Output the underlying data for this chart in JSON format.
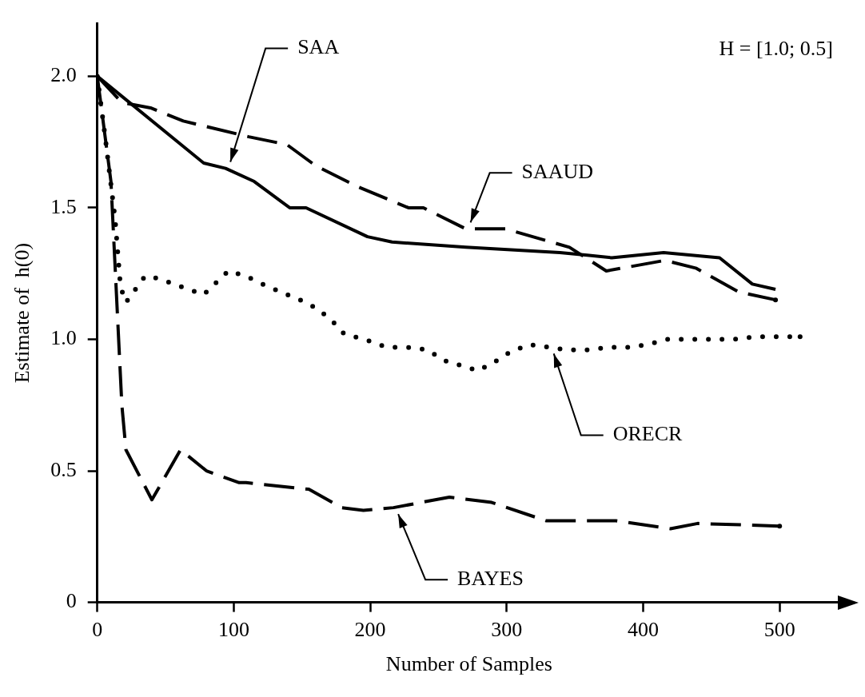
{
  "chart_data": {
    "type": "line",
    "xlabel": "Number of Samples",
    "ylabel": "Estimate of  h(0)",
    "annotations": [
      "H = [1.0; 0.5]"
    ],
    "xlim": [
      0,
      545
    ],
    "xticks": [
      0,
      100,
      200,
      300,
      400,
      500
    ],
    "ylim": [
      0,
      2.2
    ],
    "yticks": [
      0,
      {
        "value": 0.5,
        "label": "0.5"
      },
      {
        "value": 1,
        "label": "1.0"
      },
      {
        "value": 1.5,
        "label": "1.5"
      },
      {
        "value": 2,
        "label": "2.0"
      }
    ],
    "grid": false,
    "legend": false,
    "marker": "none",
    "series": [
      {
        "name": "SAA",
        "color": "#000000",
        "line_style": "solid",
        "x": [
          0,
          78,
          94,
          115,
          141,
          153,
          198,
          216,
          270,
          339,
          359,
          377,
          415,
          456,
          480,
          497
        ],
        "values": [
          2.0,
          1.67,
          1.65,
          1.6,
          1.5,
          1.5,
          1.39,
          1.37,
          1.35,
          1.33,
          1.32,
          1.31,
          1.33,
          1.31,
          1.21,
          1.19
        ]
      },
      {
        "name": "SAAUD",
        "color": "#000000",
        "line_style": "dashed",
        "x": [
          0,
          18,
          39,
          63,
          111,
          139,
          160,
          191,
          228,
          239,
          270,
          299,
          346,
          373,
          416,
          439,
          470,
          497
        ],
        "values": [
          2.0,
          1.9,
          1.88,
          1.83,
          1.77,
          1.74,
          1.66,
          1.58,
          1.5,
          1.5,
          1.42,
          1.42,
          1.35,
          1.26,
          1.3,
          1.27,
          1.18,
          1.15
        ]
      },
      {
        "name": "ORECR",
        "color": "#000000",
        "line_style": "dotted",
        "x": [
          0,
          6,
          13,
          15,
          17,
          21,
          28,
          35,
          46,
          56,
          67,
          78,
          88,
          96,
          109,
          121,
          139,
          153,
          163,
          174,
          181,
          196,
          212,
          227,
          242,
          254,
          267,
          279,
          293,
          302,
          316,
          331,
          344,
          359,
          375,
          389,
          403,
          418,
          433,
          449,
          467,
          482,
          496,
          515
        ],
        "values": [
          2.0,
          1.76,
          1.46,
          1.33,
          1.2,
          1.14,
          1.19,
          1.24,
          1.23,
          1.21,
          1.19,
          1.17,
          1.22,
          1.26,
          1.24,
          1.21,
          1.17,
          1.14,
          1.11,
          1.06,
          1.02,
          1.0,
          0.97,
          0.97,
          0.96,
          0.92,
          0.9,
          0.88,
          0.92,
          0.95,
          0.98,
          0.97,
          0.96,
          0.96,
          0.97,
          0.97,
          0.98,
          1.0,
          1.0,
          1.0,
          1.0,
          1.01,
          1.01,
          1.01
        ]
      },
      {
        "name": "BAYES",
        "color": "#000000",
        "line_style": "dashed",
        "x": [
          0,
          10,
          18,
          21,
          40,
          61,
          80,
          104,
          109,
          155,
          179,
          195,
          217,
          258,
          289,
          329,
          380,
          420,
          440,
          500
        ],
        "values": [
          2.0,
          1.6,
          0.75,
          0.58,
          0.39,
          0.58,
          0.5,
          0.455,
          0.455,
          0.43,
          0.36,
          0.35,
          0.36,
          0.4,
          0.38,
          0.31,
          0.31,
          0.28,
          0.3,
          0.29
        ]
      }
    ]
  }
}
